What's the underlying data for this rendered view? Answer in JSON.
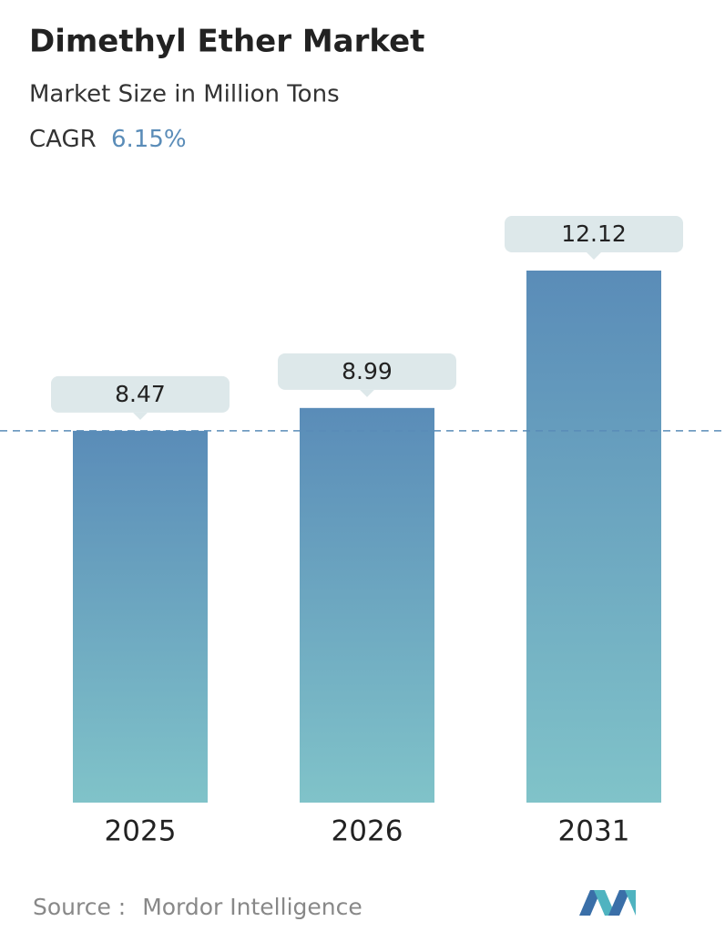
{
  "chart_data": {
    "type": "bar",
    "title": "Dimethyl Ether Market",
    "subtitle": "Market Size in Million Tons",
    "cagr_label": "CAGR",
    "cagr_value": "6.15%",
    "categories": [
      "2025",
      "2026",
      "2031"
    ],
    "values": [
      8.47,
      8.99,
      12.12
    ],
    "color_top": "#5a8cb8",
    "color_bottom": "#80c3c9",
    "source_label": "Source :",
    "source": "Mordor Intelligence"
  }
}
